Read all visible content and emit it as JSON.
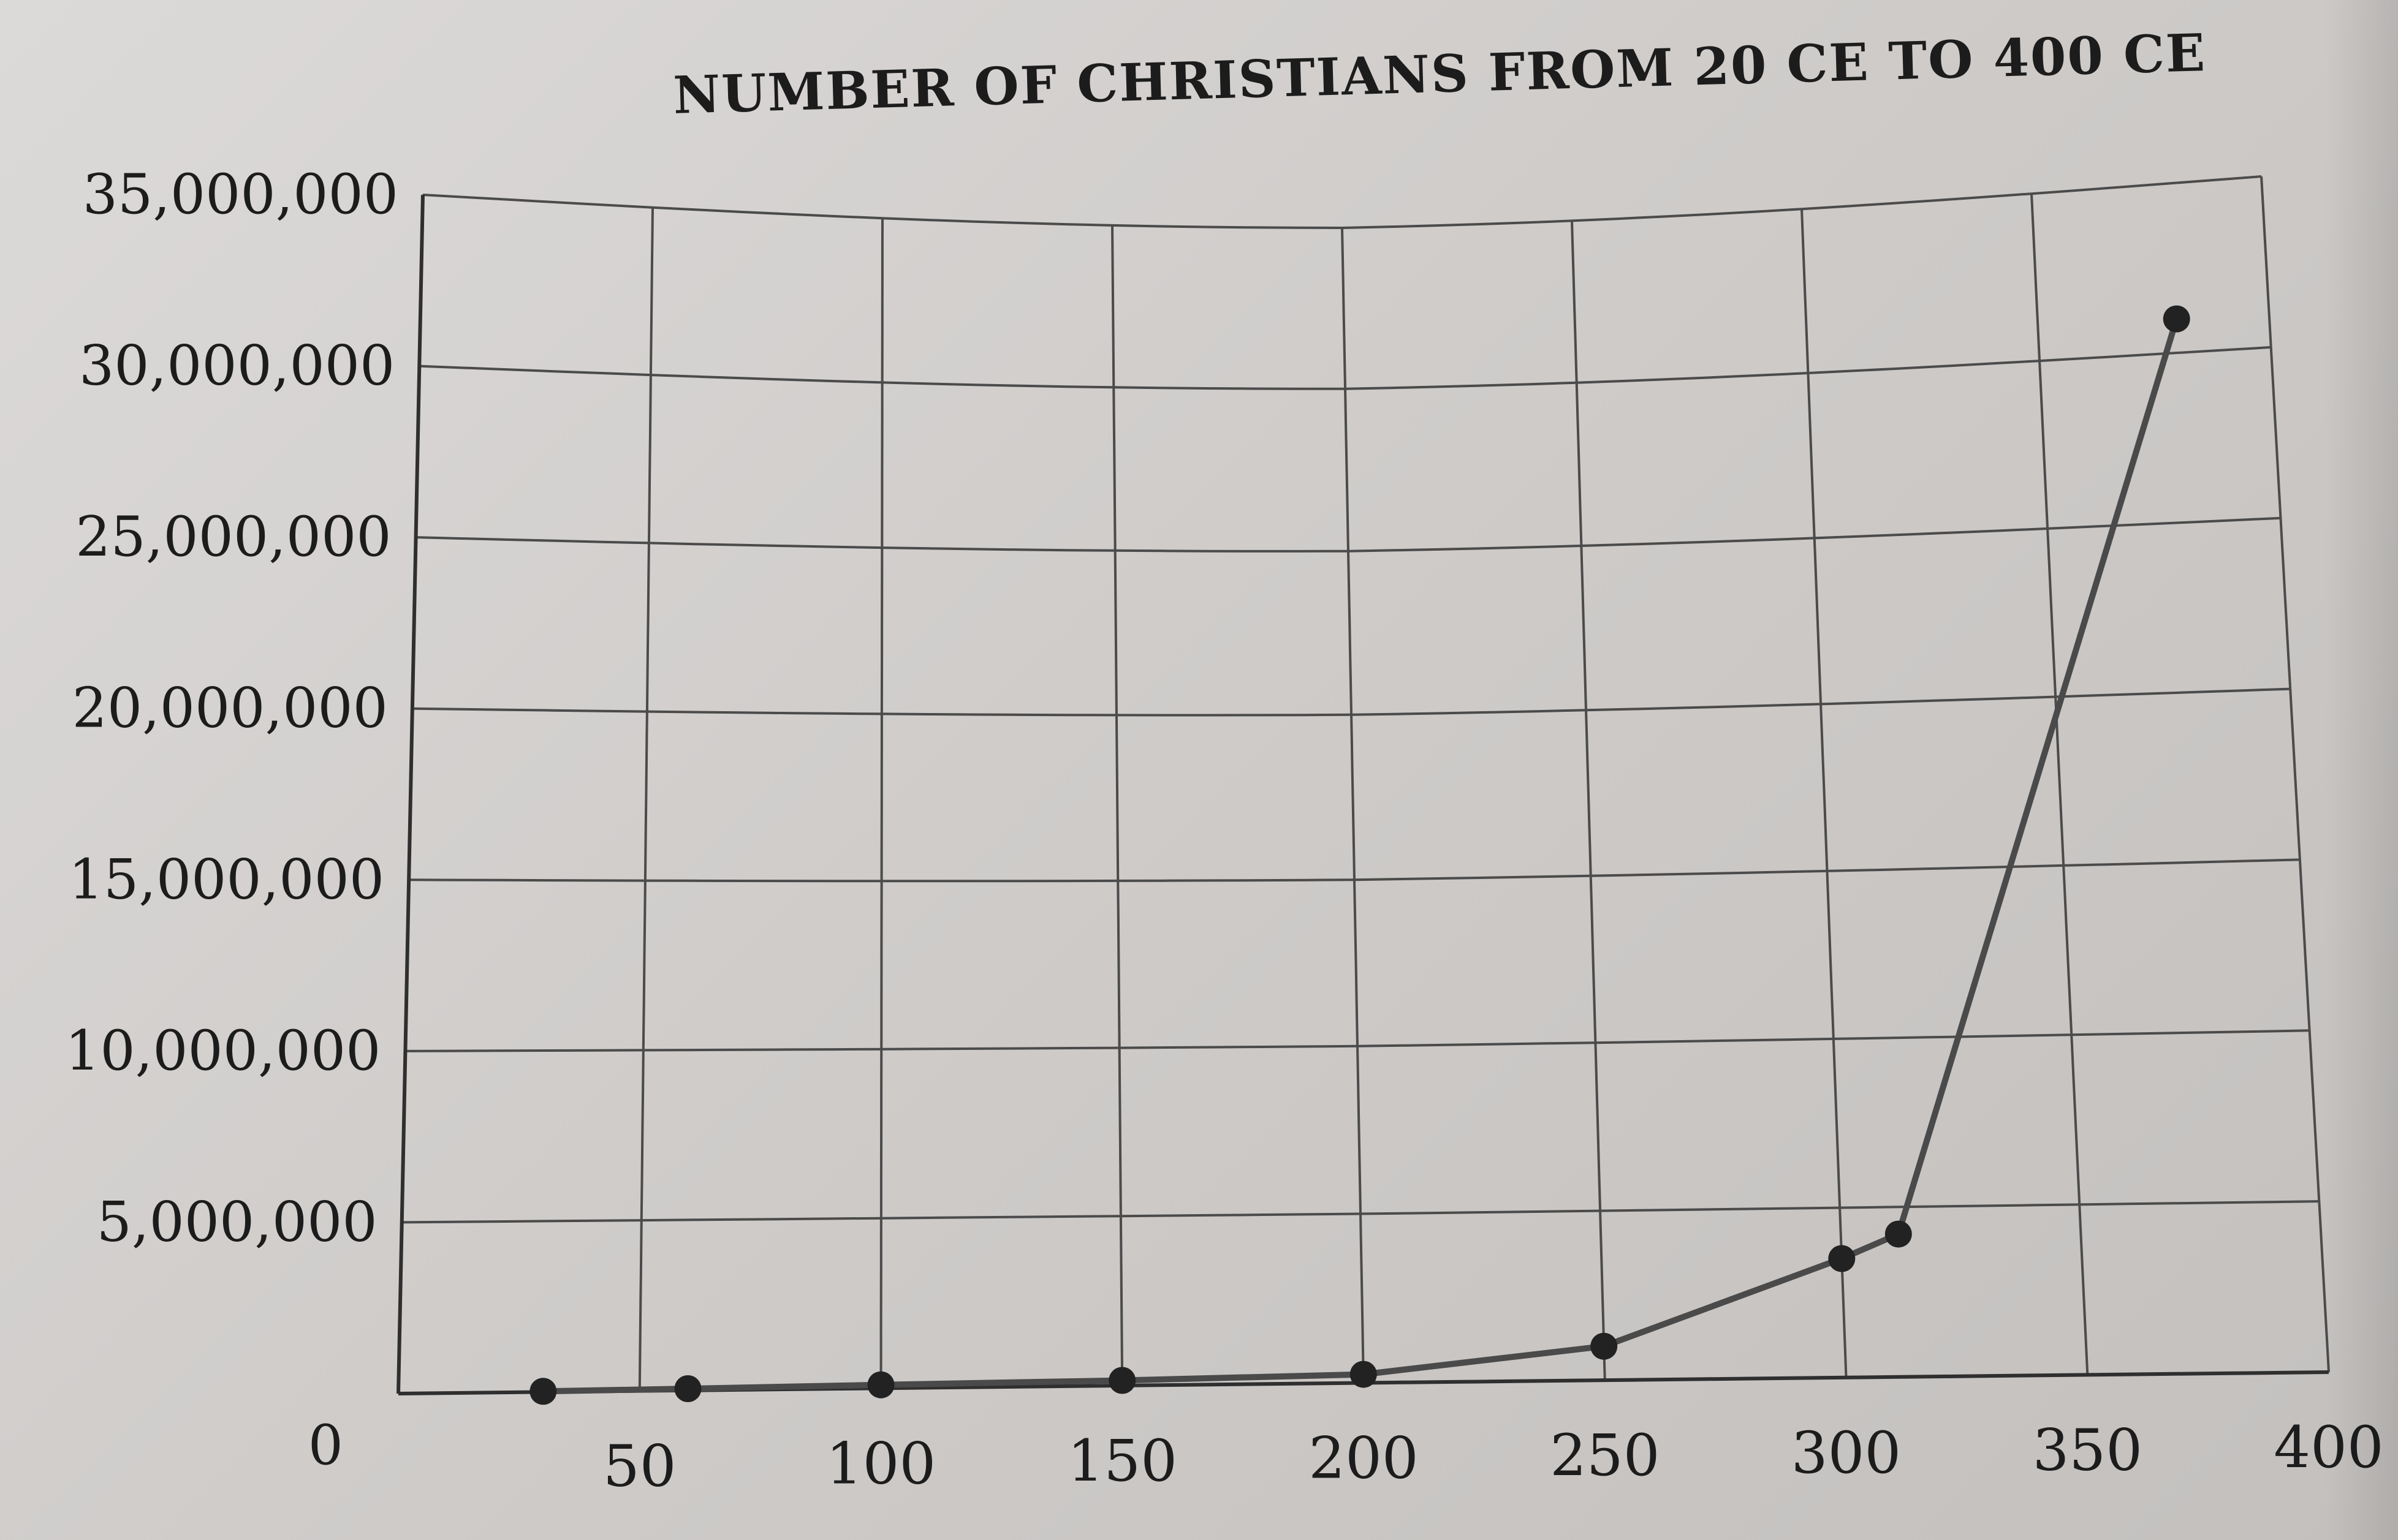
{
  "chart_data": {
    "type": "line",
    "title": "NUMBER OF CHRISTIANS FROM 20 CE TO 400 CE",
    "xlabel": "",
    "ylabel": "",
    "x_ticks": [
      "50",
      "100",
      "150",
      "200",
      "250",
      "300",
      "350",
      "400"
    ],
    "y_ticks": [
      "0",
      "5,000,000",
      "10,000,000",
      "15,000,000",
      "20,000,000",
      "25,000,000",
      "30,000,000",
      "35,000,000"
    ],
    "xlim": [
      0,
      400
    ],
    "ylim": [
      0,
      35000000
    ],
    "grid": true,
    "series": [
      {
        "x": [
          30,
          60,
          100,
          150,
          200,
          250,
          300,
          312,
          380
        ],
        "values": [
          20000,
          50000,
          100000,
          150000,
          250000,
          1000000,
          3500000,
          4200000,
          31000000
        ]
      }
    ]
  },
  "colors": {
    "paper": "#d6d4d2",
    "ink": "#1c1c1c",
    "line": "#4a4a4a"
  }
}
